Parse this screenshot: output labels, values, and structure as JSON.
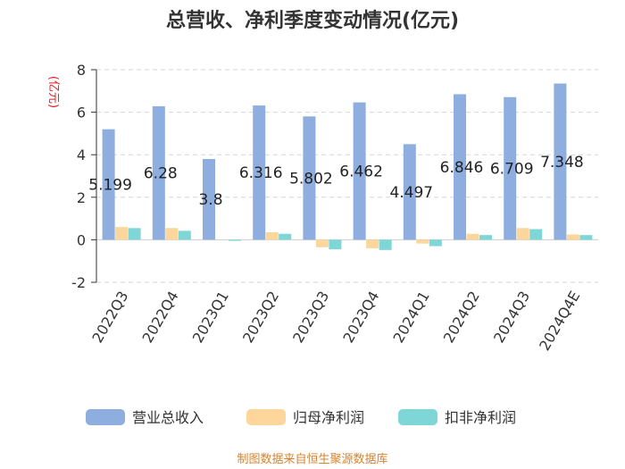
{
  "chart_data": {
    "type": "bar",
    "title": "总营收、净利季度变动情况(亿元)",
    "unit_label": "(亿元)",
    "categories": [
      "2022Q3",
      "2022Q4",
      "2023Q1",
      "2023Q2",
      "2023Q3",
      "2023Q4",
      "2024Q1",
      "2024Q2",
      "2024Q3",
      "2024Q4E"
    ],
    "series": [
      {
        "name": "营业总收入",
        "values": [
          5.199,
          6.28,
          3.8,
          6.316,
          5.802,
          6.462,
          4.497,
          6.846,
          6.709,
          7.348
        ],
        "color": "#8eaee0"
      },
      {
        "name": "归母净利润",
        "values": [
          0.6,
          0.55,
          0.0,
          0.35,
          -0.35,
          -0.4,
          -0.18,
          0.28,
          0.55,
          0.25
        ],
        "color": "#fcd69a"
      },
      {
        "name": "扣非净利润",
        "values": [
          0.55,
          0.42,
          -0.05,
          0.28,
          -0.45,
          -0.48,
          -0.3,
          0.22,
          0.5,
          0.22
        ],
        "color": "#7fd6d6"
      }
    ],
    "data_labels": [
      "5.199",
      "6.28",
      "3.8",
      "6.316",
      "5.802",
      "6.462",
      "4.497",
      "6.846",
      "6.709",
      "7.348"
    ],
    "ylim": [
      -2,
      8
    ],
    "yticks": [
      -2,
      0,
      2,
      4,
      6,
      8
    ],
    "grid": true,
    "legend_position": "bottom"
  },
  "source": "制图数据来自恒生聚源数据库"
}
